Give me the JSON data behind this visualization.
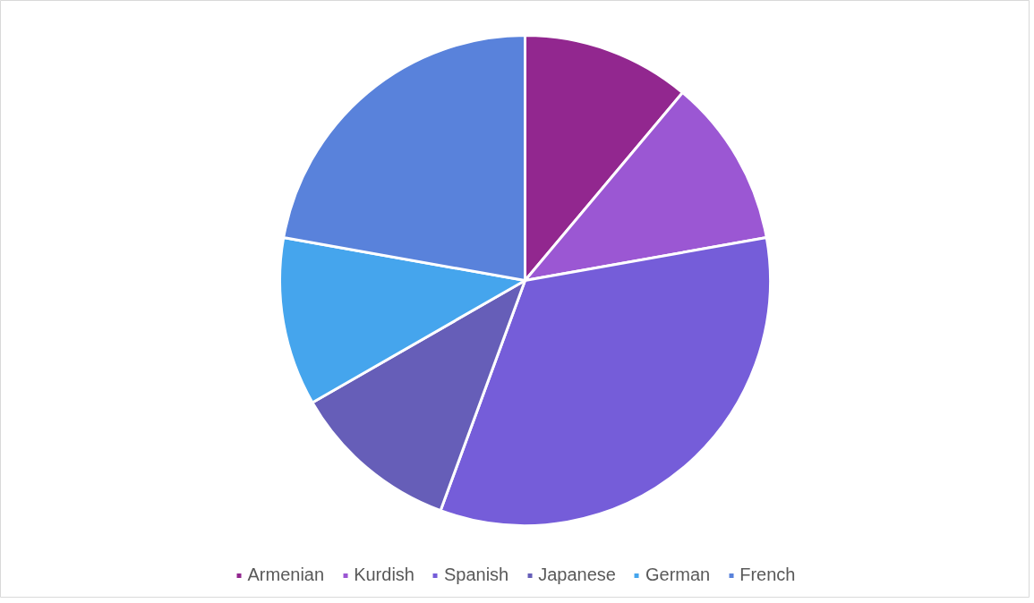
{
  "chart_data": {
    "type": "pie",
    "categories": [
      "Armenian",
      "Kurdish",
      "Spanish",
      "Japanese",
      "German",
      "French"
    ],
    "values": [
      11.1,
      11.1,
      33.4,
      11.1,
      11.1,
      22.2
    ],
    "colors": [
      "#92278f",
      "#9b57d3",
      "#755dd9",
      "#665eb8",
      "#45a5ed",
      "#5982db"
    ],
    "legend": "bottom"
  }
}
